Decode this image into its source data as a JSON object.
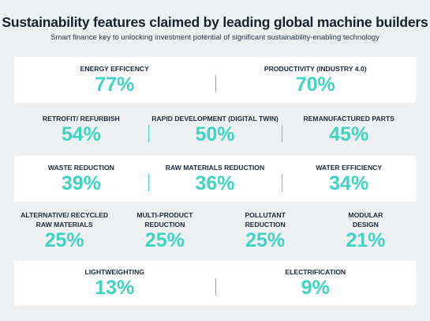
{
  "header": {
    "title": "Sustainability features claimed by leading global machine builders",
    "subtitle": "Smart finance key to unlocking investment potential of significant sustainability-enabling technology"
  },
  "rows": [
    {
      "items": [
        {
          "label": "ENERGY EFFICENCY",
          "value": "77%"
        },
        {
          "label": "PRODUCTIVITY (INDUSTRY 4.0)",
          "value": "70%"
        }
      ]
    },
    {
      "items": [
        {
          "label": "RETROFIT/ REFURBISH",
          "value": "54%"
        },
        {
          "label": "RAPID DEVELOPMENT (DIGITAL TWIN)",
          "value": "50%"
        },
        {
          "label": "REMANUFACTURED PARTS",
          "value": "45%"
        }
      ]
    },
    {
      "items": [
        {
          "label": "WASTE REDUCTION",
          "value": "39%"
        },
        {
          "label": "RAW MATERIALS REDUCTION",
          "value": "36%"
        },
        {
          "label": "WATER EFFICIENCY",
          "value": "34%"
        }
      ]
    },
    {
      "items": [
        {
          "label": "ALTERNATIVE/ RECYCLED\nRAW MATERIALS",
          "value": "25%"
        },
        {
          "label": "MULTI-PRODUCT\nREDUCTION",
          "value": "25%"
        },
        {
          "label": "POLLUTANT\nREDUCTION",
          "value": "25%"
        },
        {
          "label": "MODULAR\nDESIGN",
          "value": "21%"
        }
      ]
    },
    {
      "items": [
        {
          "label": "LIGHTWEIGHTING",
          "value": "13%"
        },
        {
          "label": "ELECTRIFICATION",
          "value": "9%"
        }
      ]
    }
  ]
}
